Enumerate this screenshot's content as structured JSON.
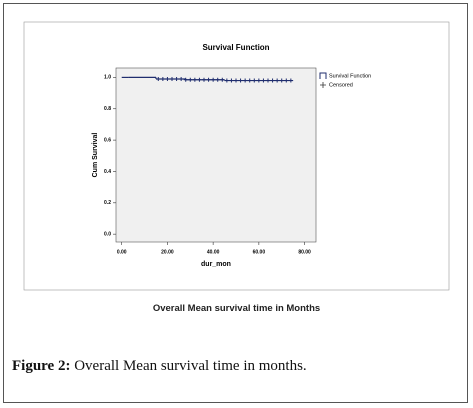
{
  "chart_data": {
    "type": "line",
    "title": "Survival Function",
    "x_label": "dur_mon",
    "y_label": "Cum Survival",
    "xlim": [
      -2.5,
      85
    ],
    "ylim": [
      -0.05,
      1.06
    ],
    "xticks": [
      {
        "value": 0,
        "label": "0.00"
      },
      {
        "value": 20,
        "label": "20.00"
      },
      {
        "value": 40,
        "label": "40.00"
      },
      {
        "value": 60,
        "label": "60.00"
      },
      {
        "value": 80,
        "label": "80.00"
      }
    ],
    "yticks": [
      {
        "value": 0,
        "label": "0.0"
      },
      0.2,
      0.4,
      0.6,
      0.8,
      {
        "value": 1,
        "label": "1.0"
      }
    ],
    "legend": "outside-right",
    "background": "#f0f0f0",
    "series": [
      {
        "name": "Survival Function",
        "color": "#1f2d6e",
        "step": true,
        "x": [
          0,
          3,
          15,
          28,
          45,
          75
        ],
        "values": [
          1.0,
          1.0,
          0.99,
          0.985,
          0.98,
          0.98
        ]
      },
      {
        "name": "Censored",
        "color": "#1f2d6e",
        "marker": "plus",
        "x": [
          16,
          18,
          20,
          22,
          24,
          26,
          28,
          30,
          32,
          34,
          36,
          38,
          40,
          42,
          44,
          46,
          48,
          50,
          52,
          54,
          56,
          58,
          60,
          62,
          64,
          66,
          68,
          70,
          72,
          74
        ],
        "values": [
          0.99,
          0.99,
          0.99,
          0.99,
          0.99,
          0.99,
          0.985,
          0.985,
          0.985,
          0.985,
          0.985,
          0.985,
          0.985,
          0.985,
          0.985,
          0.98,
          0.98,
          0.98,
          0.98,
          0.98,
          0.98,
          0.98,
          0.98,
          0.98,
          0.98,
          0.98,
          0.98,
          0.98,
          0.98,
          0.98
        ]
      }
    ]
  },
  "figure": {
    "note": "Overall Mean survival time in Months",
    "caption_label": "Figure 2:",
    "caption_text": "Overall Mean survival time in months."
  }
}
